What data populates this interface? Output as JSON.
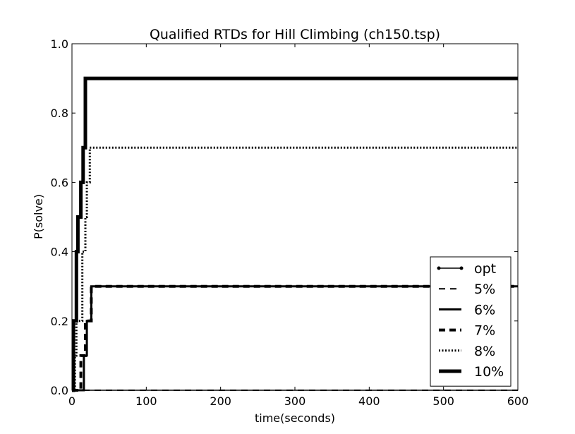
{
  "chart_data": {
    "type": "line",
    "title": "Qualified RTDs for Hill Climbing (ch150.tsp)",
    "xlabel": "time(seconds)",
    "ylabel": "P(solve)",
    "xlim": [
      0,
      600
    ],
    "ylim": [
      0,
      1.0
    ],
    "x_ticks": [
      0,
      100,
      200,
      300,
      400,
      500,
      600
    ],
    "y_ticks": [
      0.0,
      0.2,
      0.4,
      0.6,
      0.8,
      1.0
    ],
    "x_tick_labels": [
      "0",
      "100",
      "200",
      "300",
      "400",
      "500",
      "600"
    ],
    "y_tick_labels": [
      "0.0",
      "0.2",
      "0.4",
      "0.6",
      "0.8",
      "1.0"
    ],
    "grid": false,
    "legend_position": "lower-right",
    "series": [
      {
        "name": "opt",
        "style": "solid-dot",
        "points": [
          [
            0,
            0
          ],
          [
            600,
            0
          ]
        ]
      },
      {
        "name": "5%",
        "style": "dashed",
        "points": [
          [
            0,
            0
          ],
          [
            600,
            0
          ]
        ]
      },
      {
        "name": "6%",
        "style": "solid",
        "points": [
          [
            0,
            0
          ],
          [
            16,
            0
          ],
          [
            16,
            0.1
          ],
          [
            20,
            0.1
          ],
          [
            20,
            0.2
          ],
          [
            26,
            0.2
          ],
          [
            26,
            0.3
          ],
          [
            600,
            0.3
          ]
        ]
      },
      {
        "name": "7%",
        "style": "dashed-thick",
        "points": [
          [
            0,
            0
          ],
          [
            12,
            0
          ],
          [
            12,
            0.1
          ],
          [
            18,
            0.1
          ],
          [
            18,
            0.2
          ],
          [
            26,
            0.2
          ],
          [
            26,
            0.3
          ],
          [
            600,
            0.3
          ]
        ]
      },
      {
        "name": "8%",
        "style": "dotted",
        "points": [
          [
            0,
            0
          ],
          [
            4,
            0
          ],
          [
            4,
            0.1
          ],
          [
            6,
            0.1
          ],
          [
            6,
            0.2
          ],
          [
            14,
            0.2
          ],
          [
            14,
            0.4
          ],
          [
            18,
            0.4
          ],
          [
            18,
            0.5
          ],
          [
            20,
            0.5
          ],
          [
            20,
            0.6
          ],
          [
            24,
            0.6
          ],
          [
            24,
            0.7
          ],
          [
            600,
            0.7
          ]
        ]
      },
      {
        "name": "10%",
        "style": "solid-thick",
        "points": [
          [
            0,
            0
          ],
          [
            2,
            0
          ],
          [
            2,
            0.2
          ],
          [
            6,
            0.2
          ],
          [
            6,
            0.4
          ],
          [
            8,
            0.4
          ],
          [
            8,
            0.5
          ],
          [
            12,
            0.5
          ],
          [
            12,
            0.6
          ],
          [
            15,
            0.6
          ],
          [
            15,
            0.7
          ],
          [
            18,
            0.7
          ],
          [
            18,
            0.9
          ],
          [
            600,
            0.9
          ]
        ]
      }
    ]
  }
}
